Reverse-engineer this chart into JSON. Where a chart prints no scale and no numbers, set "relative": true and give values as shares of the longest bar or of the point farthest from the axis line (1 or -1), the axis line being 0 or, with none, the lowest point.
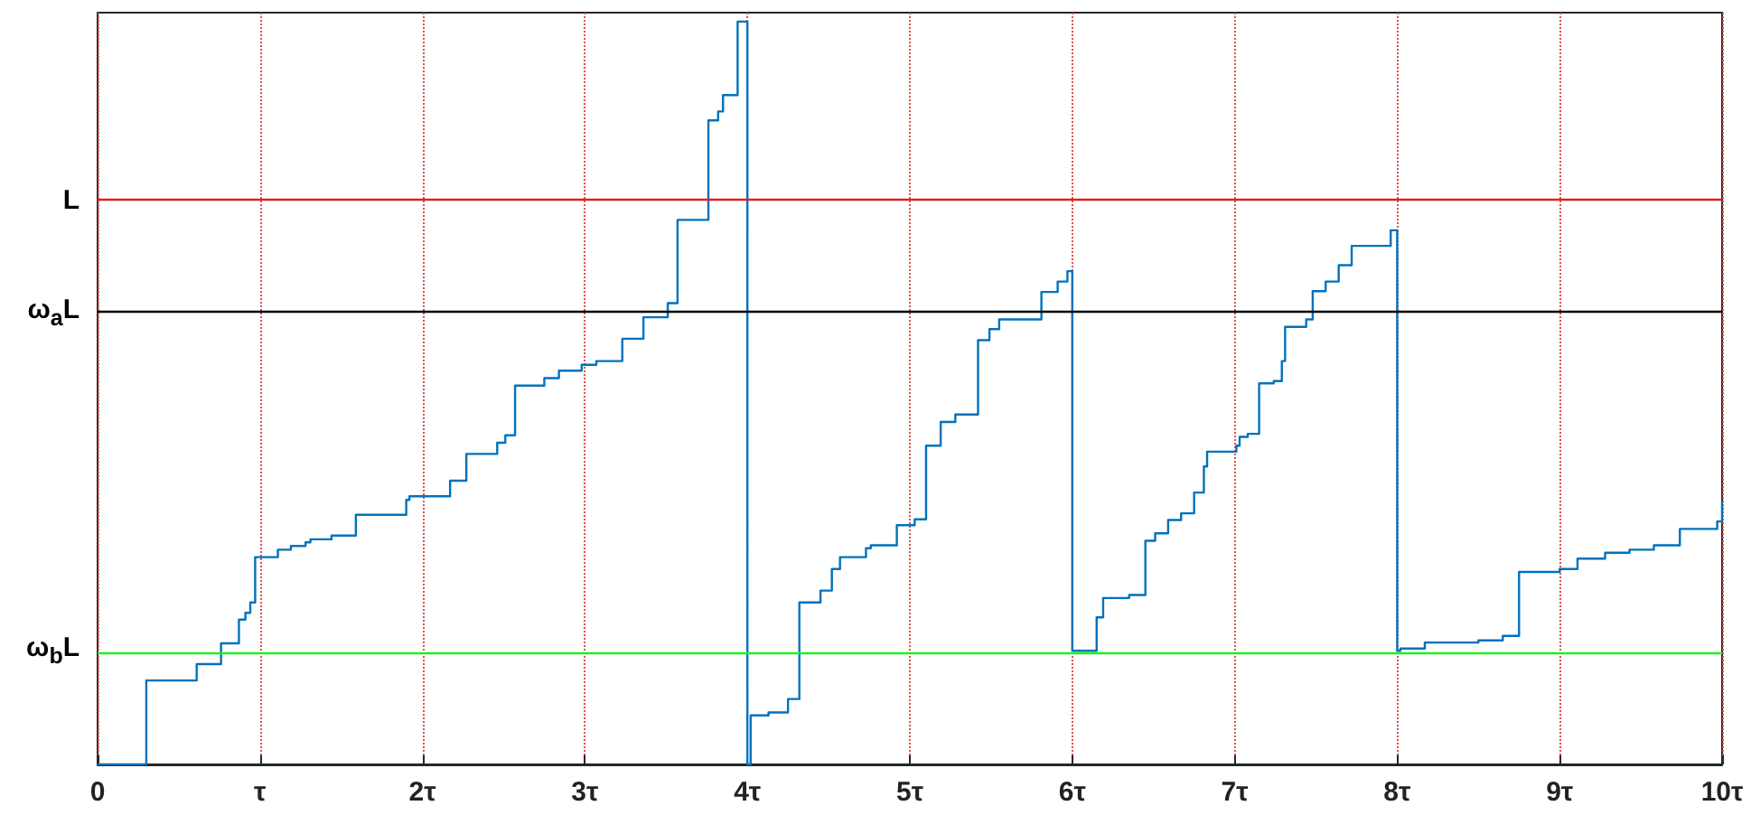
{
  "chart_data": {
    "type": "step",
    "relative": true,
    "xlim": [
      0,
      10
    ],
    "xticks": [
      0,
      {
        "value": 1,
        "label": "τ"
      },
      {
        "value": 2,
        "label": "2τ"
      },
      {
        "value": 3,
        "label": "3τ"
      },
      {
        "value": 4,
        "label": "4τ"
      },
      {
        "value": 5,
        "label": "5τ"
      },
      {
        "value": 6,
        "label": "6τ"
      },
      {
        "value": 7,
        "label": "7τ"
      },
      {
        "value": 8,
        "label": "8τ"
      },
      {
        "value": 9,
        "label": "9τ"
      },
      {
        "value": 10,
        "label": "10τ"
      }
    ],
    "grid": "x",
    "marker": "none",
    "line_style": "solid",
    "series": [
      {
        "color": "#0072bd",
        "x": [
          0,
          0.3,
          0.61,
          0.76,
          0.87,
          0.91,
          0.94,
          0.97,
          1.11,
          1.19,
          1.28,
          1.31,
          1.44,
          1.59,
          1.9,
          1.92,
          2.17,
          2.27,
          2.46,
          2.51,
          2.57,
          2.75,
          2.84,
          2.98,
          3.07,
          3.23,
          3.36,
          3.51,
          3.57,
          3.76,
          3.82,
          3.85,
          3.94,
          4.0,
          4.02,
          4.13,
          4.25,
          4.32,
          4.45,
          4.52,
          4.57,
          4.73,
          4.76,
          4.92,
          5.03,
          5.1,
          5.19,
          5.28,
          5.42,
          5.49,
          5.55,
          5.81,
          5.91,
          5.97,
          6.0,
          6.15,
          6.19,
          6.35,
          6.45,
          6.51,
          6.59,
          6.67,
          6.75,
          6.81,
          6.83,
          7.01,
          7.03,
          7.08,
          7.15,
          7.24,
          7.29,
          7.31,
          7.44,
          7.48,
          7.56,
          7.64,
          7.72,
          7.96,
          8.0,
          8.02,
          8.17,
          8.5,
          8.65,
          8.75,
          9.0,
          9.11,
          9.28,
          9.43,
          9.58,
          9.74,
          9.97,
          10
        ],
        "values": [
          0,
          0.113,
          0.135,
          0.163,
          0.195,
          0.204,
          0.218,
          0.279,
          0.289,
          0.294,
          0.299,
          0.303,
          0.308,
          0.336,
          0.356,
          0.361,
          0.382,
          0.418,
          0.433,
          0.443,
          0.51,
          0.52,
          0.53,
          0.538,
          0.543,
          0.573,
          0.602,
          0.621,
          0.733,
          0.867,
          0.879,
          0.901,
          1,
          0,
          0.066,
          0.07,
          0.088,
          0.218,
          0.234,
          0.263,
          0.279,
          0.291,
          0.295,
          0.322,
          0.33,
          0.429,
          0.461,
          0.471,
          0.571,
          0.586,
          0.599,
          0.636,
          0.65,
          0.664,
          0.153,
          0.198,
          0.224,
          0.228,
          0.301,
          0.311,
          0.329,
          0.338,
          0.366,
          0.401,
          0.421,
          0.429,
          0.441,
          0.445,
          0.513,
          0.516,
          0.543,
          0.589,
          0.599,
          0.637,
          0.65,
          0.672,
          0.698,
          0.719,
          0.153,
          0.156,
          0.164,
          0.167,
          0.173,
          0.259,
          0.263,
          0.277,
          0.285,
          0.289,
          0.295,
          0.317,
          0.327,
          0.355
        ]
      }
    ],
    "ref_lines": [
      {
        "axis": "y",
        "value": 0.759,
        "label": "L",
        "color": "#e02020"
      },
      {
        "axis": "y",
        "value": 0.608,
        "label": "ω$_{a}$L",
        "color": "#000000"
      },
      {
        "axis": "y",
        "value": 0.153,
        "label": "ω$_{b}$L",
        "color": "#22ee22"
      }
    ]
  }
}
